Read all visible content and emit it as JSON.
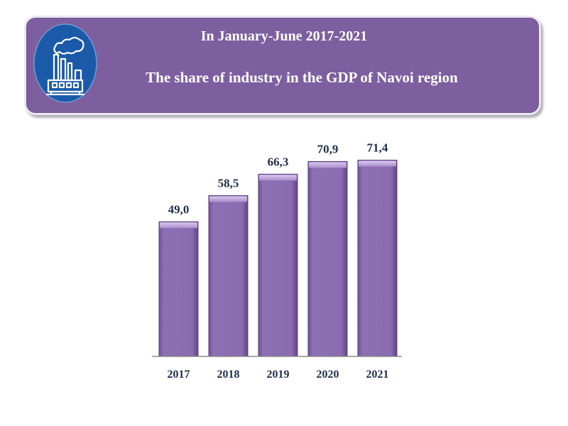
{
  "header": {
    "line1": "In January-June  2017-2021",
    "line2": "The share of industry  in the GDP of Navoi region",
    "icon": "factory-icon",
    "colors": {
      "banner": "#7d5fa0",
      "icon_circle": "#1a5aa8"
    }
  },
  "chart_data": {
    "type": "bar",
    "title": "The share of industry in the GDP of Navoi region",
    "categories": [
      "2017",
      "2018",
      "2019",
      "2020",
      "2021"
    ],
    "values": [
      49.0,
      58.5,
      66.3,
      70.9,
      71.4
    ],
    "value_labels": [
      "49,0",
      "58,5",
      "66,3",
      "70,9",
      "71,4"
    ],
    "xlabel": "",
    "ylabel": "",
    "ylim": [
      0,
      78
    ],
    "grid": false,
    "bar_color": "#8a6bb0"
  }
}
